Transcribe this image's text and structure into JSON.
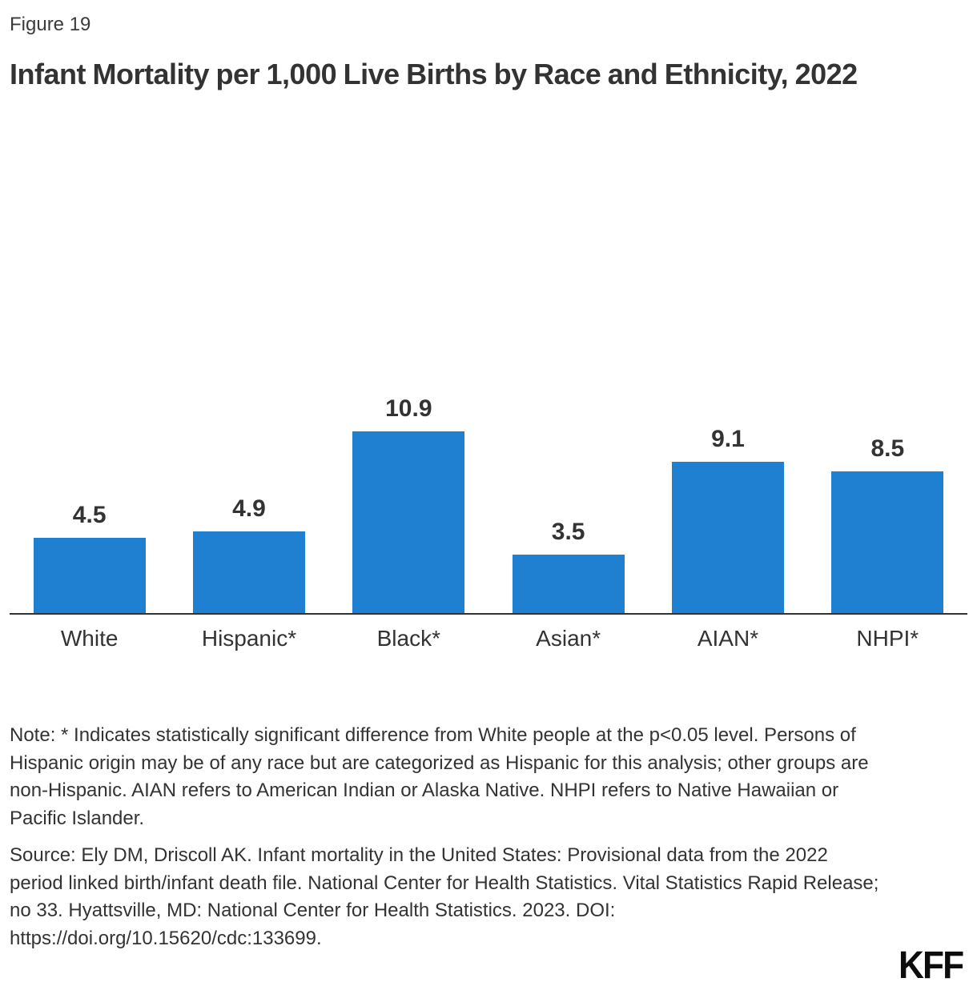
{
  "figure_label": "Figure 19",
  "title": "Infant Mortality per 1,000 Live Births by Race and Ethnicity, 2022",
  "note": "Note: * Indicates statistically significant difference from White people at the p<0.05 level. Persons of Hispanic origin may be of any race but are categorized as Hispanic for this analysis; other groups are non-Hispanic. AIAN refers to American Indian or Alaska Native. NHPI refers to Native Hawaiian or Pacific Islander.",
  "source": "Source: Ely DM, Driscoll AK. Infant mortality in the United States: Provisional data from the 2022 period linked birth/infant death file. National Center for Health Statistics. Vital Statistics Rapid Release; no 33. Hyattsville, MD: National Center for Health Statistics. 2023. DOI: https://doi.org/10.15620/cdc:133699.",
  "logo_text": "KFF",
  "colors": {
    "bar": "#1F80D2",
    "text": "#333333",
    "axis": "#333333",
    "logo": "#0D0D0D"
  },
  "chart_data": {
    "type": "bar",
    "title": "Infant Mortality per 1,000 Live Births by Race and Ethnicity, 2022",
    "categories": [
      "White",
      "Hispanic*",
      "Black*",
      "Asian*",
      "AIAN*",
      "NHPI*"
    ],
    "values": [
      4.5,
      4.9,
      10.9,
      3.5,
      9.1,
      8.5
    ],
    "data_labels": [
      "4.5",
      "4.9",
      "10.9",
      "3.5",
      "9.1",
      "8.5"
    ],
    "xlabel": "",
    "ylabel": "",
    "ylim": [
      0,
      11
    ],
    "grid": false,
    "legend": false,
    "y_axis_shown": false,
    "data_labels_position": "above-bars"
  }
}
